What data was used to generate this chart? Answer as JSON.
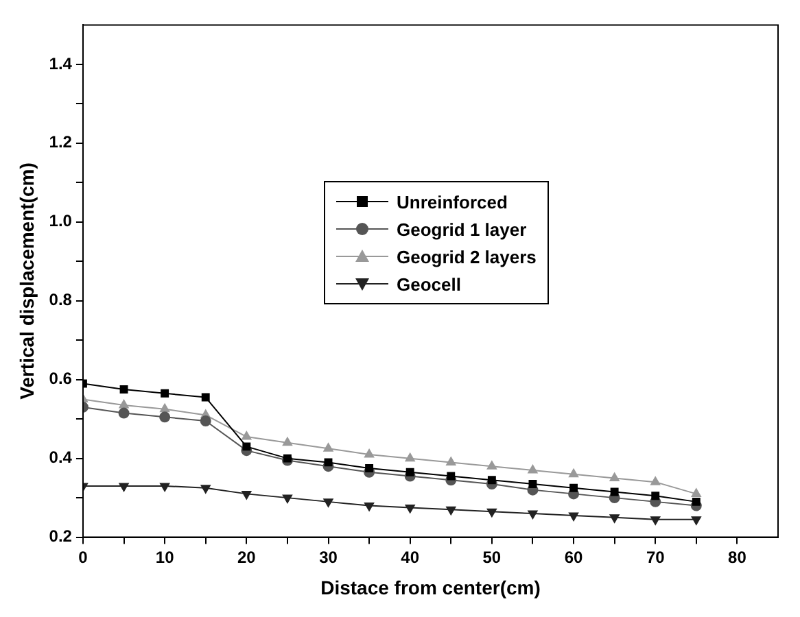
{
  "chart_data": {
    "type": "line",
    "xlabel": "Distace from center(cm)",
    "ylabel": "Vertical displacement(cm)",
    "x": [
      0,
      5,
      10,
      15,
      20,
      25,
      30,
      35,
      40,
      45,
      50,
      55,
      60,
      65,
      70,
      75
    ],
    "series": [
      {
        "name": "Unreinforced",
        "color": "#000000",
        "marker": "square",
        "values": [
          0.59,
          0.575,
          0.565,
          0.555,
          0.43,
          0.4,
          0.39,
          0.375,
          0.365,
          0.355,
          0.345,
          0.335,
          0.325,
          0.315,
          0.305,
          0.29
        ]
      },
      {
        "name": "Geogrid 1 layer",
        "color": "#555555",
        "marker": "circle",
        "values": [
          0.53,
          0.515,
          0.505,
          0.495,
          0.42,
          0.395,
          0.38,
          0.365,
          0.355,
          0.345,
          0.335,
          0.32,
          0.31,
          0.3,
          0.29,
          0.28
        ]
      },
      {
        "name": "Geogrid 2 layers",
        "color": "#999999",
        "marker": "triangle",
        "values": [
          0.55,
          0.535,
          0.525,
          0.51,
          0.455,
          0.44,
          0.425,
          0.41,
          0.4,
          0.39,
          0.38,
          0.37,
          0.36,
          0.35,
          0.34,
          0.31
        ]
      },
      {
        "name": "Geocell",
        "color": "#222222",
        "marker": "triangle-down",
        "values": [
          0.33,
          0.33,
          0.33,
          0.325,
          0.31,
          0.3,
          0.29,
          0.28,
          0.275,
          0.27,
          0.265,
          0.26,
          0.255,
          0.25,
          0.245,
          0.245
        ]
      }
    ],
    "xlim": [
      0,
      85
    ],
    "xticks": [
      0,
      {
        "value": 5,
        "label": null
      },
      10,
      {
        "value": 15,
        "label": null
      },
      20,
      {
        "value": 25,
        "label": null
      },
      30,
      {
        "value": 35,
        "label": null
      },
      40,
      {
        "value": 45,
        "label": null
      },
      50,
      {
        "value": 55,
        "label": null
      },
      60,
      {
        "value": 65,
        "label": null
      },
      70,
      {
        "value": 75,
        "label": null
      },
      80
    ],
    "ylim": [
      0.2,
      1.5
    ],
    "yticks": [
      {
        "value": 0.2,
        "label": "0.2"
      },
      {
        "value": 0.3,
        "label": null
      },
      {
        "value": 0.4,
        "label": "0.4"
      },
      {
        "value": 0.5,
        "label": null
      },
      {
        "value": 0.6,
        "label": "0.6"
      },
      {
        "value": 0.7,
        "label": null
      },
      {
        "value": 0.8,
        "label": "0.8"
      },
      {
        "value": 0.9,
        "label": null
      },
      {
        "value": 1.0,
        "label": "1.0"
      },
      {
        "value": 1.1,
        "label": null
      },
      {
        "value": 1.2,
        "label": "1.2"
      },
      {
        "value": 1.3,
        "label": null
      },
      {
        "value": 1.4,
        "label": "1.4"
      }
    ],
    "grid": false,
    "legend": "center",
    "line_style": "solid"
  }
}
